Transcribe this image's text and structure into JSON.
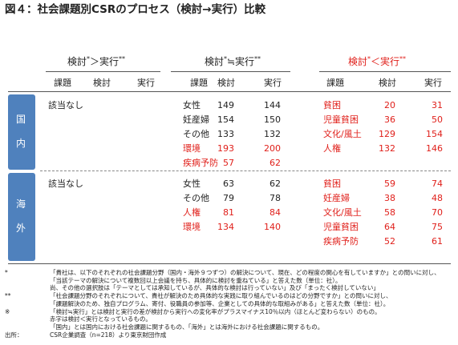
{
  "title": "図４：社会課題別CSRのプロセス（検討→実行）比較",
  "columns": [
    "課題",
    "検討",
    "実行"
  ],
  "groups": [
    {
      "heading": [
        "検討",
        "*",
        "＞実行",
        "**"
      ],
      "color": "#222222"
    },
    {
      "heading": [
        "検討",
        "*",
        "≒実行",
        "**"
      ],
      "color": "#222222"
    },
    {
      "heading": [
        "検討",
        "*",
        "＜実行",
        "**"
      ],
      "color": "#e0201b"
    }
  ],
  "sections": [
    {
      "label": [
        "国",
        "内"
      ],
      "groups": [
        {
          "note": "該当なし",
          "rows": []
        },
        {
          "rows": [
            {
              "cells": [
                "女性",
                149,
                144
              ],
              "color": "#222222"
            },
            {
              "cells": [
                "妊産婦",
                154,
                150
              ],
              "color": "#222222"
            },
            {
              "cells": [
                "その他",
                133,
                132
              ],
              "color": "#222222"
            },
            {
              "cells": [
                "環境",
                193,
                200
              ],
              "color": "#e0201b"
            },
            {
              "cells": [
                "疾病予防",
                57,
                62
              ],
              "color": "#e0201b"
            }
          ]
        },
        {
          "rows": [
            {
              "cells": [
                "貧困",
                20,
                31
              ],
              "color": "#e0201b"
            },
            {
              "cells": [
                "児童貧困",
                36,
                50
              ],
              "color": "#e0201b"
            },
            {
              "cells": [
                "文化/風土",
                129,
                154
              ],
              "color": "#e0201b"
            },
            {
              "cells": [
                "人権",
                132,
                146
              ],
              "color": "#e0201b"
            }
          ]
        }
      ]
    },
    {
      "label": [
        "海",
        "外"
      ],
      "groups": [
        {
          "note": "該当なし",
          "rows": []
        },
        {
          "rows": [
            {
              "cells": [
                "女性",
                63,
                62
              ],
              "color": "#222222"
            },
            {
              "cells": [
                "その他",
                79,
                78
              ],
              "color": "#222222"
            },
            {
              "cells": [
                "人権",
                81,
                84
              ],
              "color": "#e0201b"
            },
            {
              "cells": [
                "環境",
                134,
                140
              ],
              "color": "#e0201b"
            }
          ]
        },
        {
          "rows": [
            {
              "cells": [
                "貧困",
                59,
                74
              ],
              "color": "#e0201b"
            },
            {
              "cells": [
                "妊産婦",
                38,
                48
              ],
              "color": "#e0201b"
            },
            {
              "cells": [
                "文化/風土",
                58,
                70
              ],
              "color": "#e0201b"
            },
            {
              "cells": [
                "児童貧困",
                64,
                75
              ],
              "color": "#e0201b"
            },
            {
              "cells": [
                "疾病予防",
                52,
                61
              ],
              "color": "#e0201b"
            }
          ]
        }
      ]
    }
  ],
  "notes": [
    {
      "mark": "*",
      "text": "「貴社は、以下のそれぞれの社会課題分野（国内・海外９つずつ）の解決について、現在、どの程度の関心を有していますか」との問いに対し、"
    },
    {
      "text": "「当該テーマの解決について複数回以上会議を持ち、具体的に検討を重ねている」と答えた数（単位：社）。"
    },
    {
      "text": "尚、その他の選択肢は「テーマとしては承知しているが、具体的な検討は行っていない」及び「まったく検討していない」"
    },
    {
      "mark": "**",
      "text": "「社会課題分野のそれぞれについて、貴社が解決のため具体的な実践に取り組んでいるのはどの分野ですか」との問いに対し、"
    },
    {
      "text": "「課題解決のため、独自プログラム、寄付、役職員の参加等、企業としての具体的な取組みがある」と答えた数（単位：社）。"
    },
    {
      "mark": "※",
      "text": "「検討≒実行」とは検討と実行の差が検討から実行への変化率がプラスマイナス10％以内（ほとんど変わらない）のもの。"
    },
    {
      "text": "赤字は検討＜実行となっているもの。"
    },
    {
      "text": "「国内」とは国内における社会課題に関するもの、「海外」とは海外における社会課題に関するもの。"
    },
    {
      "mark": "出所：",
      "text": "CSR企業調査（n=218）より東京財団作成"
    }
  ]
}
